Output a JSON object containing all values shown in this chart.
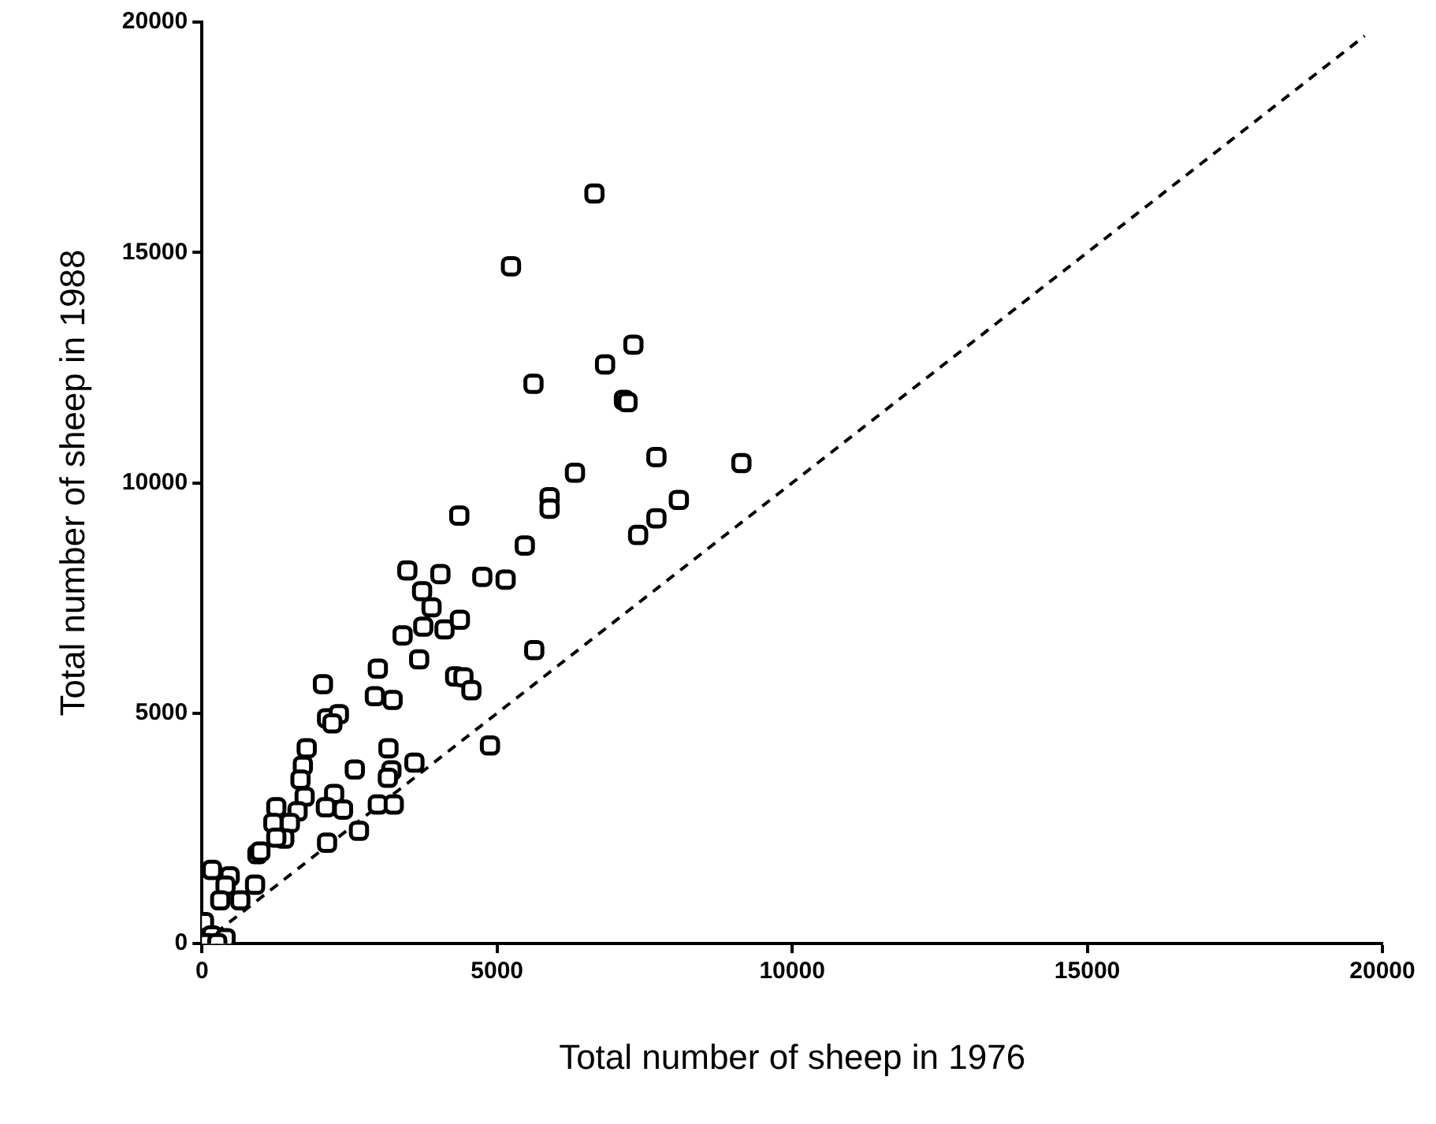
{
  "chart_data": {
    "type": "scatter",
    "xlabel": "Total number of sheep in 1976",
    "ylabel": "Total number of sheep in 1988",
    "xlim": [
      0,
      20000
    ],
    "xticks": [
      0,
      5000,
      10000,
      15000,
      20000
    ],
    "ylim": [
      0,
      20000
    ],
    "yticks": [
      0,
      5000,
      10000,
      15000,
      20000
    ],
    "grid": false,
    "legend": false,
    "marker": "square",
    "series": [
      {
        "type": "scatter",
        "color": "#000000",
        "x": [
          6650,
          5236,
          7310,
          6830,
          5617,
          7150,
          7210,
          7700,
          6320,
          8080,
          5890,
          5890,
          4360,
          7700,
          7390,
          9140,
          5470,
          3480,
          4040,
          4750,
          5145,
          3730,
          3890,
          3750,
          4110,
          4370,
          3400,
          3680,
          5630,
          2980,
          2050,
          4290,
          4430,
          4565,
          2930,
          3230,
          2120,
          2320,
          2210,
          3160,
          3600,
          4880,
          1775,
          1710,
          2590,
          3210,
          3150,
          1670,
          1740,
          2240,
          1260,
          1620,
          2100,
          2390,
          2980,
          3250,
          1210,
          1490,
          1395,
          1260,
          2660,
          2120,
          940,
          990,
          900,
          170,
          470,
          400,
          650,
          310,
          35,
          170,
          400,
          80,
          260
        ],
        "values": [
          16280,
          14700,
          13000,
          12570,
          12150,
          11800,
          11750,
          10560,
          10220,
          9630,
          9690,
          9440,
          9290,
          9230,
          8870,
          10430,
          8640,
          8100,
          8020,
          7960,
          7900,
          7650,
          7300,
          6880,
          6820,
          7030,
          6690,
          6170,
          6370,
          5970,
          5630,
          5800,
          5780,
          5500,
          5370,
          5290,
          4890,
          4980,
          4780,
          4240,
          3930,
          4300,
          4240,
          3860,
          3780,
          3760,
          3600,
          3560,
          3190,
          3250,
          2960,
          2870,
          2960,
          2910,
          3020,
          3020,
          2620,
          2620,
          2280,
          2300,
          2450,
          2190,
          1940,
          2000,
          1280,
          1600,
          1460,
          1260,
          940,
          940,
          470,
          180,
          120,
          10,
          10
        ]
      },
      {
        "type": "line",
        "color": "#000000",
        "line_style": "dashed",
        "marker": "none",
        "x": [
          0,
          19700
        ],
        "values": [
          0,
          19700
        ]
      }
    ]
  }
}
